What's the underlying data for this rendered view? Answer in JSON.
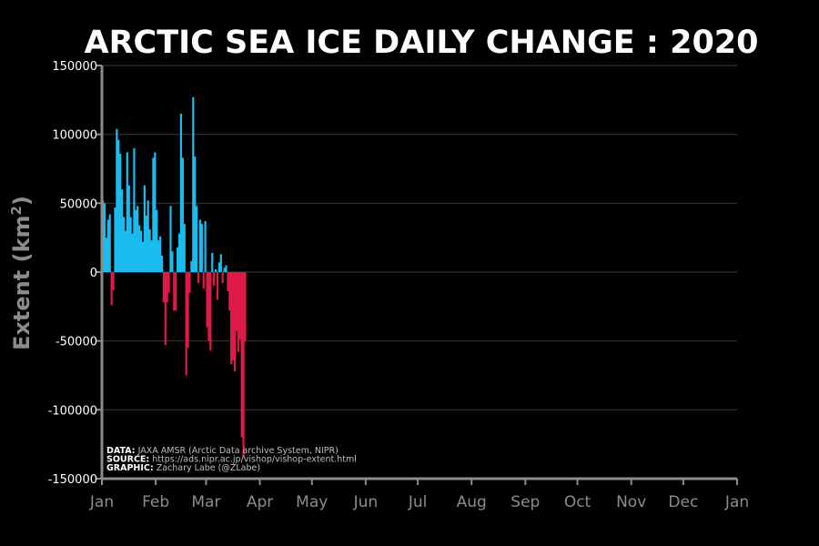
{
  "chart_data": {
    "type": "bar",
    "title": "ARCTIC SEA ICE DAILY CHANGE : 2020",
    "ylabel": "Extent (km",
    "ylabel_sup": "2",
    "ylabel_close": ")",
    "ylim": [
      -150000,
      150000
    ],
    "yticks": [
      150000,
      100000,
      50000,
      0,
      -50000,
      -100000,
      -150000
    ],
    "ytick_labels": [
      "150000",
      "100000",
      "50000",
      "0",
      "-50000",
      "-100000",
      "-150000"
    ],
    "xlim_days": [
      0,
      366
    ],
    "x_ticks": [
      {
        "label": "Jan",
        "day": 0
      },
      {
        "label": "Feb",
        "day": 31
      },
      {
        "label": "Mar",
        "day": 60
      },
      {
        "label": "Apr",
        "day": 91
      },
      {
        "label": "May",
        "day": 121
      },
      {
        "label": "Jun",
        "day": 152
      },
      {
        "label": "Jul",
        "day": 182
      },
      {
        "label": "Aug",
        "day": 213
      },
      {
        "label": "Sep",
        "day": 244
      },
      {
        "label": "Oct",
        "day": 274
      },
      {
        "label": "Nov",
        "day": 305
      },
      {
        "label": "Dec",
        "day": 335
      },
      {
        "label": "Jan",
        "day": 366
      }
    ],
    "grid": "horizontal",
    "colors": {
      "positive": "#1bbcf0",
      "negative": "#e01a48",
      "background": "#000000",
      "axis": "#8c8c8c",
      "grid": "#333333",
      "text": "#ffffff"
    },
    "values": [
      52000,
      50000,
      25000,
      38000,
      42000,
      -24000,
      -13000,
      47000,
      104000,
      96000,
      86000,
      60000,
      40000,
      30000,
      87000,
      63000,
      40000,
      28000,
      90000,
      45000,
      48000,
      34000,
      30000,
      22000,
      63000,
      41000,
      52000,
      31000,
      23000,
      83000,
      87000,
      45000,
      23000,
      26000,
      12000,
      -22000,
      -53000,
      -22000,
      -15000,
      48000,
      15000,
      -28000,
      -28000,
      18000,
      28000,
      115000,
      83000,
      35000,
      -75000,
      -55000,
      -15000,
      8000,
      127000,
      84000,
      48000,
      -8000,
      38000,
      35000,
      -12000,
      37000,
      -40000,
      -50000,
      -57000,
      14000,
      -10000,
      2000,
      -20000,
      7000,
      13000,
      -8000,
      3000,
      5000,
      -14000,
      -28000,
      -67000,
      -64000,
      -72000,
      -43000,
      -58000,
      -49000,
      -120000,
      -135000,
      -50000
    ]
  },
  "annotations": [
    {
      "bold": "DATA:",
      "text": " JAXA AMSR (Arctic Data archive System, NIPR)"
    },
    {
      "bold": "SOURCE:",
      "text": " https://ads.nipr.ac.jp/vishop/vishop-extent.html"
    },
    {
      "bold": "GRAPHIC:",
      "text": " Zachary Labe (@ZLabe)"
    }
  ]
}
